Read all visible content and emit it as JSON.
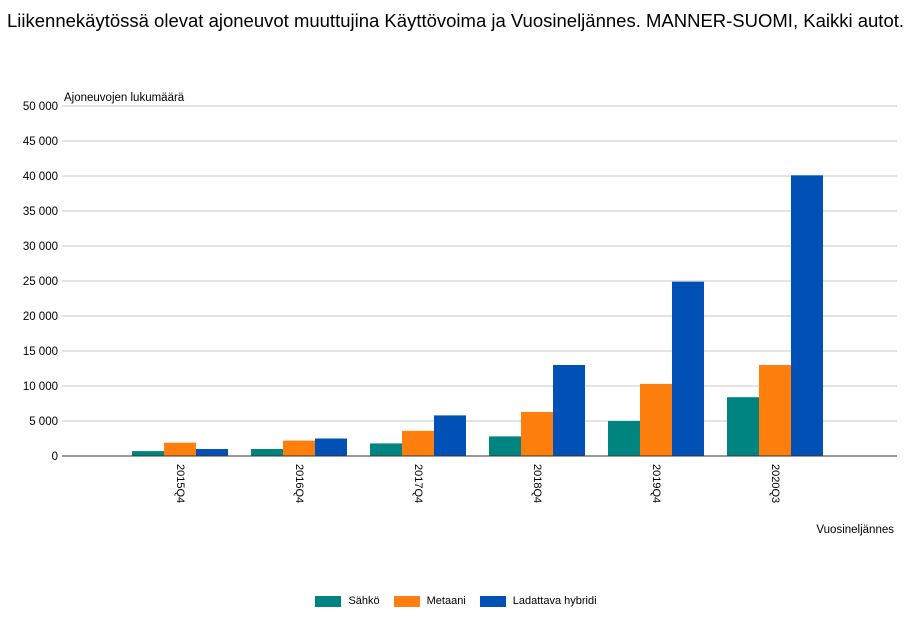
{
  "chart_data": {
    "type": "bar",
    "title": "Liikennekäytössä olevat ajoneuvot muuttujina Käyttövoima ja Vuosineljännes. MANNER-SUOMI, Kaikki autot.",
    "ylabel": "Ajoneuvojen lukumäärä",
    "xlabel": "Vuosineljännes",
    "categories": [
      "2015Q4",
      "2016Q4",
      "2017Q4",
      "2018Q4",
      "2019Q4",
      "2020Q3"
    ],
    "series": [
      {
        "name": "Sähkö",
        "color": "#00847f",
        "values": [
          700,
          1000,
          1800,
          2800,
          5000,
          8400
        ]
      },
      {
        "name": "Metaani",
        "color": "#ff7f0e",
        "values": [
          1900,
          2200,
          3600,
          6300,
          10300,
          13000
        ]
      },
      {
        "name": "Ladattava hybridi",
        "color": "#0050b5",
        "values": [
          1000,
          2500,
          5800,
          13000,
          24900,
          40100
        ]
      }
    ],
    "ylim": [
      0,
      50000
    ],
    "yticks": [
      0,
      5000,
      10000,
      15000,
      20000,
      25000,
      30000,
      35000,
      40000,
      45000,
      50000
    ],
    "ytick_labels": [
      "0",
      "5 000",
      "10 000",
      "15 000",
      "20 000",
      "25 000",
      "30 000",
      "35 000",
      "40 000",
      "45 000",
      "50 000"
    ],
    "grid": true,
    "legend_position": "bottom-center"
  }
}
